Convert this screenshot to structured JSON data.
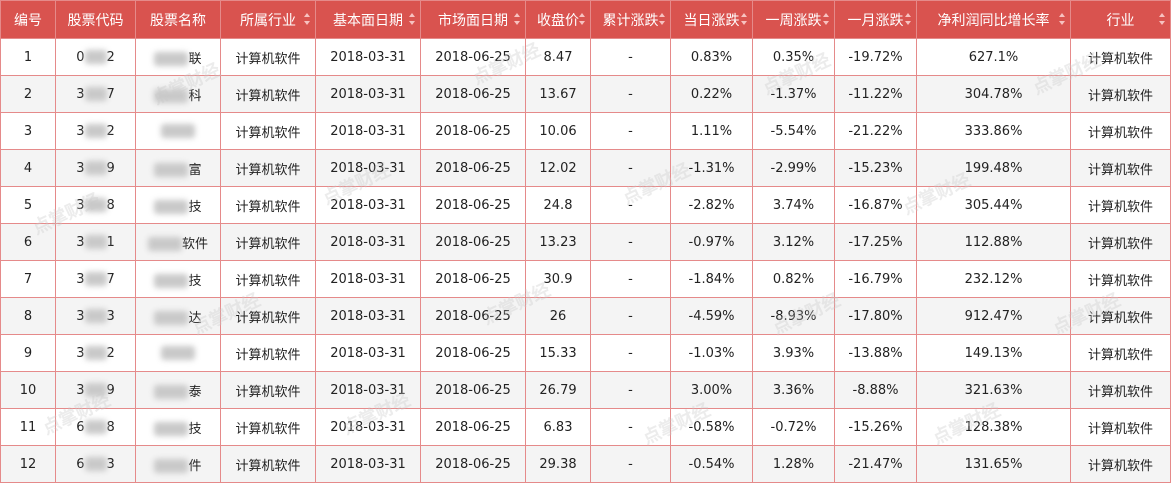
{
  "table": {
    "headers": [
      {
        "label": "编号",
        "sortable": false
      },
      {
        "label": "股票代码",
        "sortable": false
      },
      {
        "label": "股票名称",
        "sortable": false
      },
      {
        "label": "所属行业",
        "sortable": true
      },
      {
        "label": "基本面日期",
        "sortable": true
      },
      {
        "label": "市场面日期",
        "sortable": true
      },
      {
        "label": "收盘价",
        "sortable": true
      },
      {
        "label": "累计涨跌",
        "sortable": true
      },
      {
        "label": "当日涨跌",
        "sortable": true
      },
      {
        "label": "一周涨跌",
        "sortable": true
      },
      {
        "label": "一月涨跌",
        "sortable": true
      },
      {
        "label": "净利润同比增长率",
        "sortable": true
      },
      {
        "label": "行业",
        "sortable": true
      }
    ],
    "rows": [
      {
        "id": "1",
        "code_prefix": "0",
        "code_suffix": "2",
        "name_prefix": "",
        "name_suffix": "联",
        "sector": "计算机软件",
        "basic_date": "2018-03-31",
        "market_date": "2018-06-25",
        "close": "8.47",
        "cum": "-",
        "day": "0.83%",
        "week": "0.35%",
        "month": "-19.72%",
        "growth": "627.1%",
        "industry": "计算机软件"
      },
      {
        "id": "2",
        "code_prefix": "3",
        "code_suffix": "7",
        "name_prefix": "",
        "name_suffix": "科",
        "sector": "计算机软件",
        "basic_date": "2018-03-31",
        "market_date": "2018-06-25",
        "close": "13.67",
        "cum": "-",
        "day": "0.22%",
        "week": "-1.37%",
        "month": "-11.22%",
        "growth": "304.78%",
        "industry": "计算机软件"
      },
      {
        "id": "3",
        "code_prefix": "3",
        "code_suffix": "2",
        "name_prefix": "",
        "name_suffix": "",
        "sector": "计算机软件",
        "basic_date": "2018-03-31",
        "market_date": "2018-06-25",
        "close": "10.06",
        "cum": "-",
        "day": "1.11%",
        "week": "-5.54%",
        "month": "-21.22%",
        "growth": "333.86%",
        "industry": "计算机软件"
      },
      {
        "id": "4",
        "code_prefix": "3",
        "code_suffix": "9",
        "name_prefix": "",
        "name_suffix": "富",
        "sector": "计算机软件",
        "basic_date": "2018-03-31",
        "market_date": "2018-06-25",
        "close": "12.02",
        "cum": "-",
        "day": "-1.31%",
        "week": "-2.99%",
        "month": "-15.23%",
        "growth": "199.48%",
        "industry": "计算机软件"
      },
      {
        "id": "5",
        "code_prefix": "3",
        "code_suffix": "8",
        "name_prefix": "",
        "name_suffix": "技",
        "sector": "计算机软件",
        "basic_date": "2018-03-31",
        "market_date": "2018-06-25",
        "close": "24.8",
        "cum": "-",
        "day": "-2.82%",
        "week": "3.74%",
        "month": "-16.87%",
        "growth": "305.44%",
        "industry": "计算机软件"
      },
      {
        "id": "6",
        "code_prefix": "3",
        "code_suffix": "1",
        "name_prefix": "",
        "name_suffix": "软件",
        "sector": "计算机软件",
        "basic_date": "2018-03-31",
        "market_date": "2018-06-25",
        "close": "13.23",
        "cum": "-",
        "day": "-0.97%",
        "week": "3.12%",
        "month": "-17.25%",
        "growth": "112.88%",
        "industry": "计算机软件"
      },
      {
        "id": "7",
        "code_prefix": "3",
        "code_suffix": "7",
        "name_prefix": "",
        "name_suffix": "技",
        "sector": "计算机软件",
        "basic_date": "2018-03-31",
        "market_date": "2018-06-25",
        "close": "30.9",
        "cum": "-",
        "day": "-1.84%",
        "week": "0.82%",
        "month": "-16.79%",
        "growth": "232.12%",
        "industry": "计算机软件"
      },
      {
        "id": "8",
        "code_prefix": "3",
        "code_suffix": "3",
        "name_prefix": "",
        "name_suffix": "达",
        "sector": "计算机软件",
        "basic_date": "2018-03-31",
        "market_date": "2018-06-25",
        "close": "26",
        "cum": "-",
        "day": "-4.59%",
        "week": "-8.93%",
        "month": "-17.80%",
        "growth": "912.47%",
        "industry": "计算机软件"
      },
      {
        "id": "9",
        "code_prefix": "3",
        "code_suffix": "2",
        "name_prefix": "",
        "name_suffix": "",
        "sector": "计算机软件",
        "basic_date": "2018-03-31",
        "market_date": "2018-06-25",
        "close": "15.33",
        "cum": "-",
        "day": "-1.03%",
        "week": "3.93%",
        "month": "-13.88%",
        "growth": "149.13%",
        "industry": "计算机软件"
      },
      {
        "id": "10",
        "code_prefix": "3",
        "code_suffix": "9",
        "name_prefix": "",
        "name_suffix": "泰",
        "sector": "计算机软件",
        "basic_date": "2018-03-31",
        "market_date": "2018-06-25",
        "close": "26.79",
        "cum": "-",
        "day": "3.00%",
        "week": "3.36%",
        "month": "-8.88%",
        "growth": "321.63%",
        "industry": "计算机软件"
      },
      {
        "id": "11",
        "code_prefix": "6",
        "code_suffix": "8",
        "name_prefix": "",
        "name_suffix": "技",
        "sector": "计算机软件",
        "basic_date": "2018-03-31",
        "market_date": "2018-06-25",
        "close": "6.83",
        "cum": "-",
        "day": "-0.58%",
        "week": "-0.72%",
        "month": "-15.26%",
        "growth": "128.38%",
        "industry": "计算机软件"
      },
      {
        "id": "12",
        "code_prefix": "6",
        "code_suffix": "3",
        "name_prefix": "",
        "name_suffix": "件",
        "sector": "计算机软件",
        "basic_date": "2018-03-31",
        "market_date": "2018-06-25",
        "close": "29.38",
        "cum": "-",
        "day": "-0.54%",
        "week": "1.28%",
        "month": "-21.47%",
        "growth": "131.65%",
        "industry": "计算机软件"
      }
    ]
  },
  "watermark_text": "点掌财经",
  "colors": {
    "header_bg": "#d9534f",
    "header_text": "#ffffff",
    "border": "#e58a8a",
    "row_alt_bg": "#f4f4f4"
  }
}
